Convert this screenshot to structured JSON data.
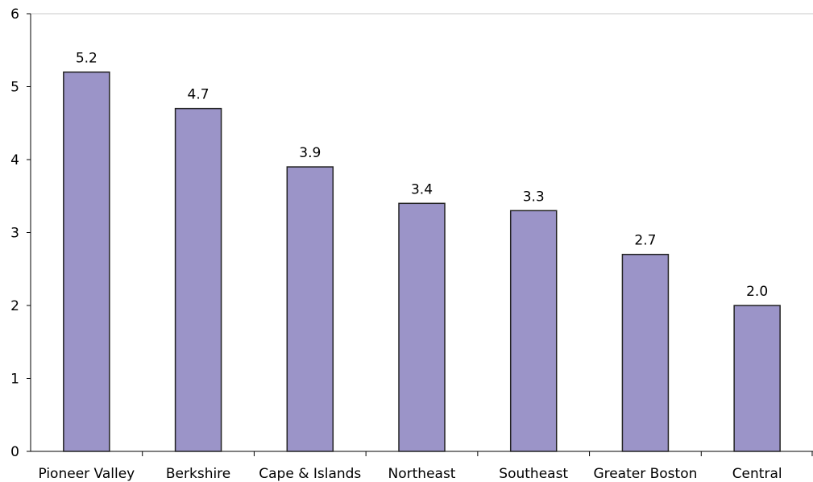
{
  "chart_data": {
    "type": "bar",
    "categories": [
      "Pioneer Valley",
      "Berkshire",
      "Cape & Islands",
      "Northeast",
      "Southeast",
      "Greater Boston",
      "Central"
    ],
    "values": [
      5.2,
      4.7,
      3.9,
      3.4,
      3.3,
      2.7,
      2.0
    ],
    "data_labels": [
      "5.2",
      "4.7",
      "3.9",
      "3.4",
      "3.3",
      "2.7",
      "2.0"
    ],
    "title": "",
    "xlabel": "",
    "ylabel": "",
    "ylim": [
      0,
      6
    ],
    "yticks": [
      "0",
      "1",
      "2",
      "3",
      "4",
      "5",
      "6"
    ],
    "grid": false,
    "legend": "none",
    "colors": {
      "bar_fill": "#9b94c8",
      "bar_stroke": "#222222",
      "axis": "#000000",
      "top_border": "#c8c8c8"
    }
  }
}
